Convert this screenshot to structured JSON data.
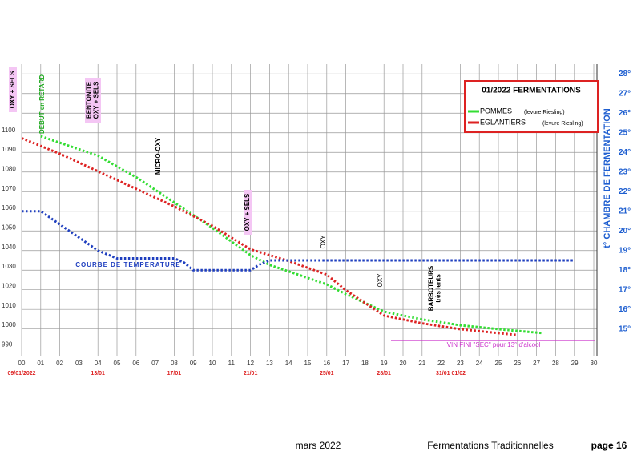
{
  "chart_data": {
    "type": "line",
    "legend_title": "01/2022  FERMENTATIONS",
    "y2label": "t° CHAMBRE DE FERMENTATION",
    "xlim": [
      0,
      30
    ],
    "ylim": [
      984,
      1134
    ],
    "y2lim": [
      13.6,
      28.5
    ],
    "grid": true,
    "xticks": [
      {
        "value": 0,
        "label": "00"
      },
      {
        "value": 1,
        "label": "01"
      },
      {
        "value": 2,
        "label": "02"
      },
      {
        "value": 3,
        "label": "03"
      },
      {
        "value": 4,
        "label": "04"
      },
      {
        "value": 5,
        "label": "05"
      },
      {
        "value": 6,
        "label": "06"
      },
      {
        "value": 7,
        "label": "07"
      },
      {
        "value": 8,
        "label": "08"
      },
      {
        "value": 9,
        "label": "09"
      },
      10,
      11,
      12,
      13,
      14,
      15,
      16,
      17,
      18,
      19,
      20,
      21,
      22,
      23,
      24,
      25,
      26,
      27,
      28,
      29,
      30
    ],
    "date_labels": [
      {
        "value": 0,
        "label": "09/01/2022"
      },
      {
        "value": 4,
        "label": "13/01"
      },
      {
        "value": 8,
        "label": "17/01"
      },
      {
        "value": 12,
        "label": "21/01"
      },
      {
        "value": 16,
        "label": "25/01"
      },
      {
        "value": 19,
        "label": "28/01"
      },
      {
        "value": 22.5,
        "label": "31/01 01/02"
      }
    ],
    "yticks": [
      990,
      1000,
      1010,
      1020,
      1030,
      1040,
      1050,
      1060,
      1070,
      1080,
      1090,
      1100
    ],
    "y2ticks": [
      {
        "value": 15,
        "label": "15°"
      },
      {
        "value": 16,
        "label": "16°"
      },
      {
        "value": 17,
        "label": "17°"
      },
      {
        "value": 18,
        "label": "18°"
      },
      {
        "value": 19,
        "label": "19°"
      },
      {
        "value": 20,
        "label": "20°"
      },
      {
        "value": 21,
        "label": "21°"
      },
      {
        "value": 22,
        "label": "22°"
      },
      {
        "value": 23,
        "label": "23°"
      },
      {
        "value": 24,
        "label": "24°"
      },
      {
        "value": 25,
        "label": "25°"
      },
      {
        "value": 26,
        "label": "26°"
      },
      {
        "value": 27,
        "label": "27°"
      },
      {
        "value": 28,
        "label": "28°"
      }
    ],
    "series": [
      {
        "name": "POMMES",
        "note": "(levure Riesling)",
        "color": "#33dd33",
        "x": [
          1,
          4,
          6,
          8,
          10,
          12,
          13,
          16,
          17,
          19,
          21,
          23,
          25,
          27.3
        ],
        "values": [
          1097,
          1087,
          1076,
          1063,
          1050,
          1036,
          1031,
          1021,
          1016,
          1007,
          1003,
          1000,
          998,
          996
        ]
      },
      {
        "name": "EGLANTIERS",
        "note": "(levure Riesling)",
        "color": "#dd2222",
        "x": [
          0,
          2,
          4,
          6,
          8,
          10,
          12,
          14,
          16,
          17,
          19,
          21,
          23,
          25,
          26
        ],
        "values": [
          1096,
          1088,
          1079,
          1070,
          1061,
          1051,
          1039,
          1033,
          1026,
          1018,
          1005,
          1001,
          998,
          996,
          995
        ]
      },
      {
        "name": "COURBE DE TEMPERATURE",
        "color": "#1f3fbf",
        "axis": "y2",
        "x": [
          0,
          1,
          4,
          5,
          8,
          8.5,
          9,
          12,
          12.5,
          13,
          29
        ],
        "values": [
          21,
          21,
          19,
          18.6,
          18.6,
          18.4,
          18,
          18,
          18.3,
          18.5,
          18.5
        ]
      }
    ],
    "annotations": [
      "OXY + SELS",
      "DEBUT en RETARD",
      "BENTONITE\nOXY + SELS",
      "MICRO-OXY",
      "OXY + SELS",
      "OXY",
      "OXY",
      "BARBOTEURS\ntrès lents",
      "VIN FINI \"SEC\" pour 13° d'alcool"
    ]
  },
  "footer": {
    "date": "mars 2022",
    "title": "Fermentations Traditionnelles",
    "page": "page 16"
  }
}
